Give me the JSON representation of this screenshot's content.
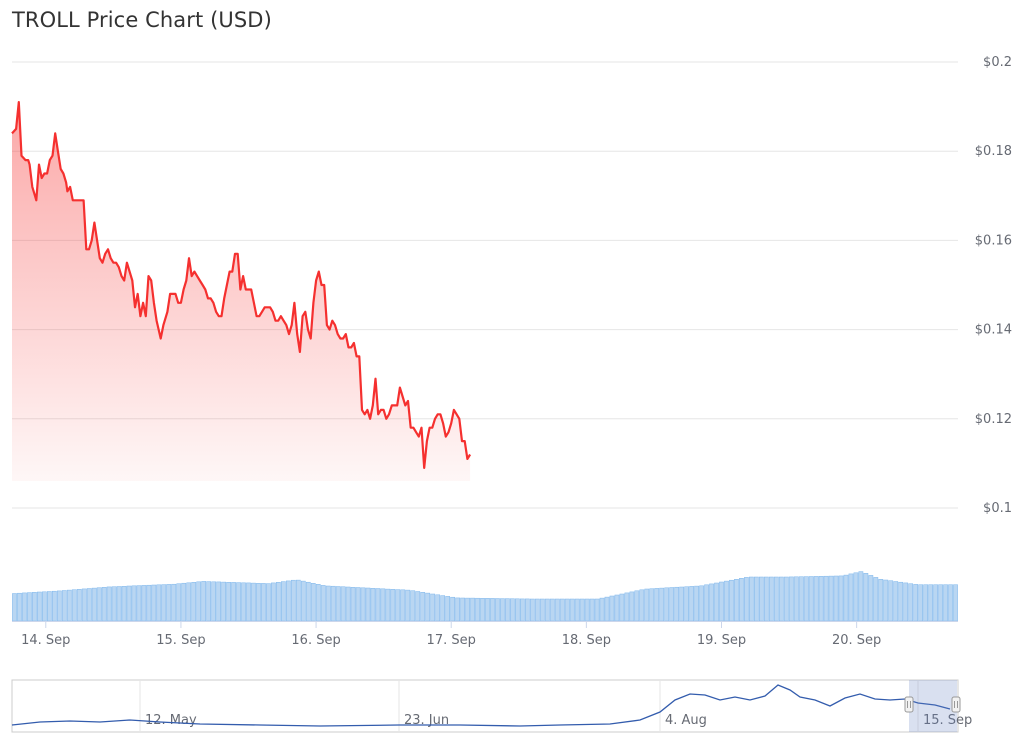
{
  "chart_data": {
    "type": "line",
    "title": "TROLL Price Chart (USD)",
    "colors": {
      "price_line": "#f5302f",
      "volume_bar": "#b9d6f2",
      "volume_bar_stroke": "#7cb5ec",
      "navigator_line": "#335cad"
    },
    "y_axis": {
      "ticks": [
        "$0.2",
        "$0.18",
        "$0.16",
        "$0.14",
        "$0.12",
        "$0.1"
      ],
      "ylim": [
        0.1,
        0.2
      ]
    },
    "x_axis": {
      "ticks": [
        "14. Sep",
        "15. Sep",
        "16. Sep",
        "17. Sep",
        "18. Sep",
        "19. Sep",
        "20. Sep"
      ],
      "range_days": [
        13.75,
        20.75
      ]
    },
    "grid": true,
    "price_series": {
      "name": "",
      "points": [
        [
          13.75,
          0.184
        ],
        [
          13.78,
          0.185
        ],
        [
          13.8,
          0.191
        ],
        [
          13.82,
          0.179
        ],
        [
          13.85,
          0.178
        ],
        [
          13.87,
          0.178
        ],
        [
          13.88,
          0.177
        ],
        [
          13.9,
          0.172
        ],
        [
          13.92,
          0.17
        ],
        [
          13.93,
          0.169
        ],
        [
          13.95,
          0.177
        ],
        [
          13.97,
          0.174
        ],
        [
          13.99,
          0.175
        ],
        [
          14.01,
          0.175
        ],
        [
          14.03,
          0.178
        ],
        [
          14.05,
          0.179
        ],
        [
          14.07,
          0.184
        ],
        [
          14.09,
          0.18
        ],
        [
          14.11,
          0.176
        ],
        [
          14.13,
          0.175
        ],
        [
          14.15,
          0.173
        ],
        [
          14.16,
          0.171
        ],
        [
          14.18,
          0.172
        ],
        [
          14.2,
          0.169
        ],
        [
          14.22,
          0.169
        ],
        [
          14.24,
          0.169
        ],
        [
          14.26,
          0.169
        ],
        [
          14.28,
          0.169
        ],
        [
          14.3,
          0.158
        ],
        [
          14.32,
          0.158
        ],
        [
          14.34,
          0.16
        ],
        [
          14.36,
          0.164
        ],
        [
          14.38,
          0.16
        ],
        [
          14.4,
          0.156
        ],
        [
          14.42,
          0.155
        ],
        [
          14.44,
          0.157
        ],
        [
          14.46,
          0.158
        ],
        [
          14.48,
          0.156
        ],
        [
          14.5,
          0.155
        ],
        [
          14.52,
          0.155
        ],
        [
          14.54,
          0.154
        ],
        [
          14.56,
          0.152
        ],
        [
          14.58,
          0.151
        ],
        [
          14.6,
          0.155
        ],
        [
          14.62,
          0.153
        ],
        [
          14.64,
          0.151
        ],
        [
          14.66,
          0.145
        ],
        [
          14.68,
          0.148
        ],
        [
          14.7,
          0.143
        ],
        [
          14.72,
          0.146
        ],
        [
          14.74,
          0.143
        ],
        [
          14.76,
          0.152
        ],
        [
          14.78,
          0.151
        ],
        [
          14.8,
          0.146
        ],
        [
          14.82,
          0.142
        ],
        [
          14.85,
          0.138
        ],
        [
          14.87,
          0.141
        ],
        [
          14.9,
          0.144
        ],
        [
          14.92,
          0.148
        ],
        [
          14.94,
          0.148
        ],
        [
          14.96,
          0.148
        ],
        [
          14.98,
          0.146
        ],
        [
          15.0,
          0.146
        ],
        [
          15.02,
          0.149
        ],
        [
          15.04,
          0.151
        ],
        [
          15.06,
          0.156
        ],
        [
          15.08,
          0.152
        ],
        [
          15.1,
          0.153
        ],
        [
          15.12,
          0.152
        ],
        [
          15.14,
          0.151
        ],
        [
          15.16,
          0.15
        ],
        [
          15.18,
          0.149
        ],
        [
          15.2,
          0.147
        ],
        [
          15.22,
          0.147
        ],
        [
          15.24,
          0.146
        ],
        [
          15.26,
          0.144
        ],
        [
          15.28,
          0.143
        ],
        [
          15.3,
          0.143
        ],
        [
          15.32,
          0.147
        ],
        [
          15.34,
          0.15
        ],
        [
          15.36,
          0.153
        ],
        [
          15.38,
          0.153
        ],
        [
          15.4,
          0.157
        ],
        [
          15.42,
          0.157
        ],
        [
          15.44,
          0.149
        ],
        [
          15.46,
          0.152
        ],
        [
          15.48,
          0.149
        ],
        [
          15.5,
          0.149
        ],
        [
          15.52,
          0.149
        ],
        [
          15.54,
          0.146
        ],
        [
          15.56,
          0.143
        ],
        [
          15.58,
          0.143
        ],
        [
          15.6,
          0.144
        ],
        [
          15.62,
          0.145
        ],
        [
          15.64,
          0.145
        ],
        [
          15.66,
          0.145
        ],
        [
          15.68,
          0.144
        ],
        [
          15.7,
          0.142
        ],
        [
          15.72,
          0.142
        ],
        [
          15.74,
          0.143
        ],
        [
          15.76,
          0.142
        ],
        [
          15.78,
          0.141
        ],
        [
          15.8,
          0.139
        ],
        [
          15.82,
          0.141
        ],
        [
          15.84,
          0.146
        ],
        [
          15.86,
          0.139
        ],
        [
          15.88,
          0.135
        ],
        [
          15.9,
          0.143
        ],
        [
          15.92,
          0.144
        ],
        [
          15.94,
          0.14
        ],
        [
          15.96,
          0.138
        ],
        [
          15.98,
          0.146
        ],
        [
          16.0,
          0.151
        ],
        [
          16.02,
          0.153
        ],
        [
          16.04,
          0.15
        ],
        [
          16.06,
          0.15
        ],
        [
          16.08,
          0.141
        ],
        [
          16.1,
          0.14
        ],
        [
          16.12,
          0.142
        ],
        [
          16.14,
          0.141
        ],
        [
          16.16,
          0.139
        ],
        [
          16.18,
          0.138
        ],
        [
          16.2,
          0.138
        ],
        [
          16.22,
          0.139
        ],
        [
          16.24,
          0.136
        ],
        [
          16.26,
          0.136
        ],
        [
          16.28,
          0.137
        ],
        [
          16.3,
          0.134
        ],
        [
          16.32,
          0.134
        ],
        [
          16.34,
          0.122
        ],
        [
          16.36,
          0.121
        ],
        [
          16.38,
          0.122
        ],
        [
          16.4,
          0.12
        ],
        [
          16.42,
          0.123
        ],
        [
          16.44,
          0.129
        ],
        [
          16.46,
          0.121
        ],
        [
          16.48,
          0.122
        ],
        [
          16.5,
          0.122
        ],
        [
          16.52,
          0.12
        ],
        [
          16.54,
          0.121
        ],
        [
          16.56,
          0.123
        ],
        [
          16.58,
          0.123
        ],
        [
          16.6,
          0.123
        ],
        [
          16.62,
          0.127
        ],
        [
          16.64,
          0.125
        ],
        [
          16.66,
          0.123
        ],
        [
          16.68,
          0.124
        ],
        [
          16.7,
          0.118
        ],
        [
          16.72,
          0.118
        ],
        [
          16.74,
          0.117
        ],
        [
          16.76,
          0.116
        ],
        [
          16.78,
          0.118
        ],
        [
          16.8,
          0.109
        ],
        [
          16.82,
          0.115
        ],
        [
          16.84,
          0.118
        ],
        [
          16.86,
          0.118
        ],
        [
          16.88,
          0.12
        ],
        [
          16.9,
          0.121
        ],
        [
          16.92,
          0.121
        ],
        [
          16.94,
          0.119
        ],
        [
          16.96,
          0.116
        ],
        [
          16.98,
          0.117
        ],
        [
          17.0,
          0.119
        ],
        [
          17.02,
          0.122
        ],
        [
          17.04,
          0.121
        ],
        [
          17.06,
          0.12
        ],
        [
          17.08,
          0.115
        ],
        [
          17.1,
          0.115
        ],
        [
          17.12,
          0.111
        ],
        [
          17.14,
          0.112
        ]
      ]
    },
    "volume_series": {
      "name": "",
      "count": 190
    },
    "navigator": {
      "ticks": [
        "12. May",
        "23. Jun",
        "4. Aug",
        "15. Sep"
      ]
    }
  }
}
